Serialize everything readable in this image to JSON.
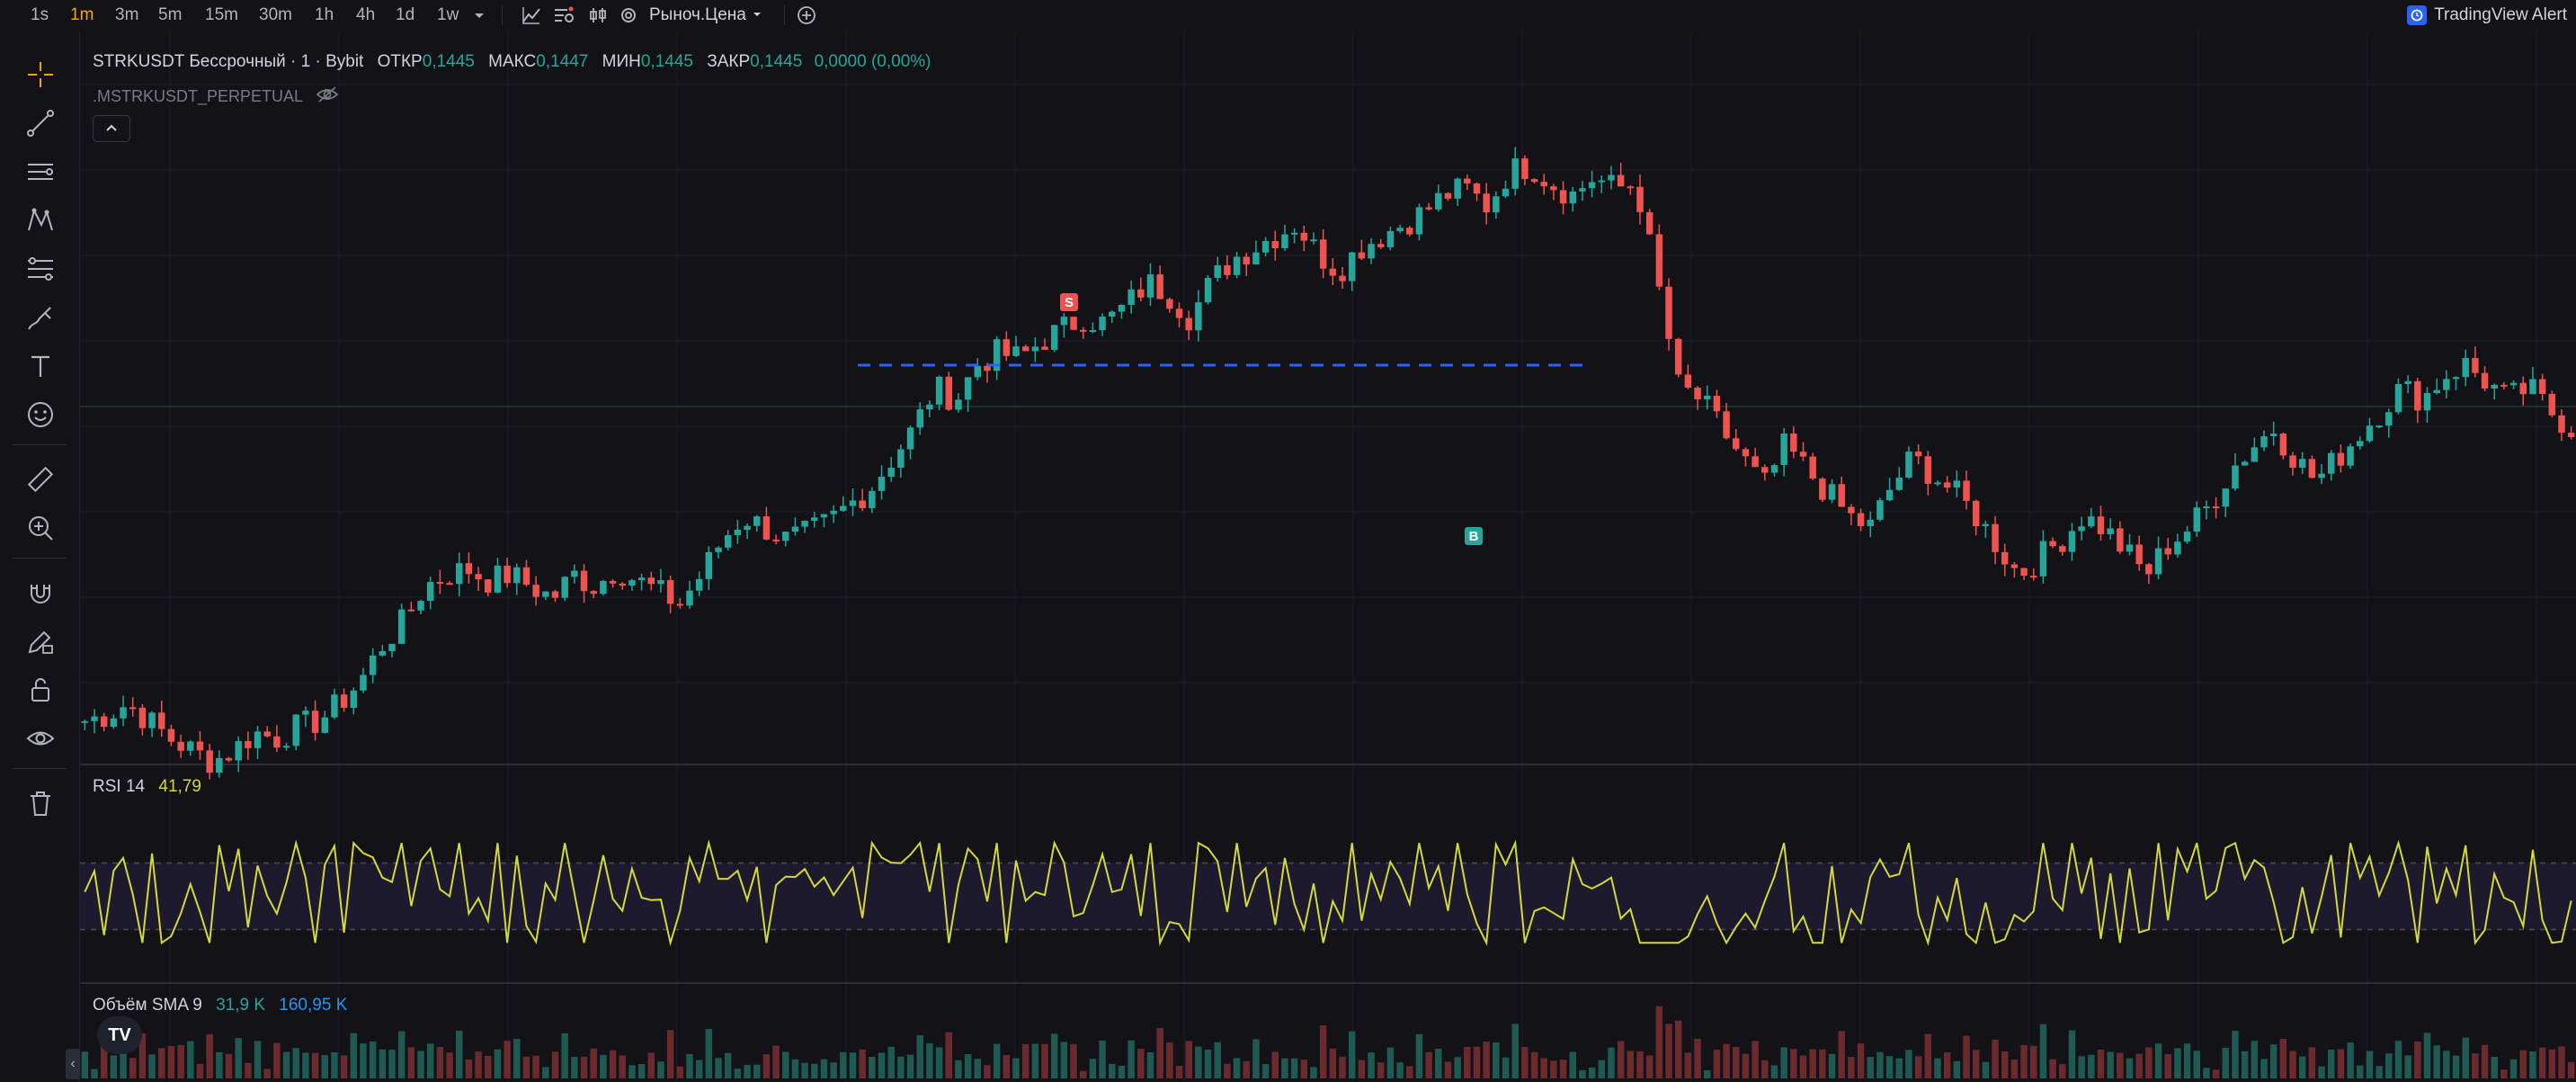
{
  "toolbar": {
    "timeframes": [
      "1s",
      "1m",
      "3m",
      "5m",
      "15m",
      "30m",
      "1h",
      "4h",
      "1d",
      "1w"
    ],
    "active_timeframe": "1m",
    "price_type_label": "Рыноч.Цена",
    "alert_button_label": "TradingView Alert",
    "icons": [
      "chevron-down-icon",
      "line-chart-icon",
      "bar-replay-icon",
      "compare-icon",
      "settings-icon",
      "add-circle-icon"
    ]
  },
  "sidebar": {
    "tools": [
      "crosshair-icon",
      "trend-line-icon",
      "horizontal-lines-icon",
      "pattern-icon",
      "fib-channel-icon",
      "brush-icon",
      "text-icon",
      "emoji-icon",
      "ruler-icon",
      "zoom-in-icon",
      "magnet-icon",
      "pencil-lock-icon",
      "lock-icon",
      "eye-icon",
      "trash-icon"
    ]
  },
  "legend": {
    "symbol": "STRKUSDT Бессрочный · 1 · Bybit",
    "open_label": "ОТКР",
    "open": "0,1445",
    "high_label": "МАКС",
    "high": "0,1447",
    "low_label": "МИН",
    "low": "0,1445",
    "close_label": "ЗАКР",
    "close": "0,1445",
    "change": "0,0000 (0,00%)",
    "sub_symbol": ".MSTRKUSDT_PERPETUAL"
  },
  "rsi": {
    "label": "RSI 14",
    "value": "41,79",
    "line_color": "#d4d93a",
    "upper_band": 70,
    "lower_band": 30
  },
  "volume": {
    "label": "Объём SMA 9",
    "value1": "31,9 K",
    "value2": "160,95 K",
    "color_up": "#26a69a",
    "color_down": "#ef5350"
  },
  "markers": {
    "sell_label": "S",
    "buy_label": "B"
  },
  "colors": {
    "up": "#26a69a",
    "down": "#ef5350",
    "accent": "#f7a600",
    "dashed_line": "#2962ff"
  },
  "chart_data": {
    "type": "candlestick",
    "symbol": "STRKUSDT",
    "interval": "1m",
    "close_series_relative": [
      0.05,
      0.06,
      0.08,
      0.05,
      0.02,
      0.0,
      -0.02,
      0.0,
      0.03,
      0.02,
      0.04,
      0.05,
      0.08,
      0.12,
      0.18,
      0.22,
      0.28,
      0.3,
      0.31,
      0.29,
      0.3,
      0.28,
      0.26,
      0.3,
      0.28,
      0.31,
      0.29,
      0.27,
      0.25,
      0.3,
      0.36,
      0.4,
      0.38,
      0.36,
      0.37,
      0.39,
      0.42,
      0.45,
      0.5,
      0.55,
      0.62,
      0.6,
      0.66,
      0.68,
      0.67,
      0.7,
      0.72,
      0.74,
      0.73,
      0.76,
      0.8,
      0.78,
      0.74,
      0.8,
      0.84,
      0.86,
      0.88,
      0.9,
      0.85,
      0.82,
      0.86,
      0.88,
      0.9,
      0.92,
      0.95,
      0.96,
      0.93,
      0.99,
      1.0,
      0.97,
      0.95,
      0.98,
      0.96,
      0.97,
      0.8,
      0.62,
      0.6,
      0.55,
      0.5,
      0.45,
      0.52,
      0.48,
      0.44,
      0.4,
      0.38,
      0.45,
      0.5,
      0.47,
      0.44,
      0.4,
      0.35,
      0.3,
      0.33,
      0.36,
      0.4,
      0.38,
      0.34,
      0.3,
      0.35,
      0.38,
      0.42,
      0.48,
      0.52,
      0.55,
      0.5,
      0.46,
      0.5,
      0.54,
      0.58,
      0.62,
      0.6,
      0.64,
      0.66,
      0.63,
      0.6,
      0.62,
      0.58,
      0.55
    ]
  }
}
